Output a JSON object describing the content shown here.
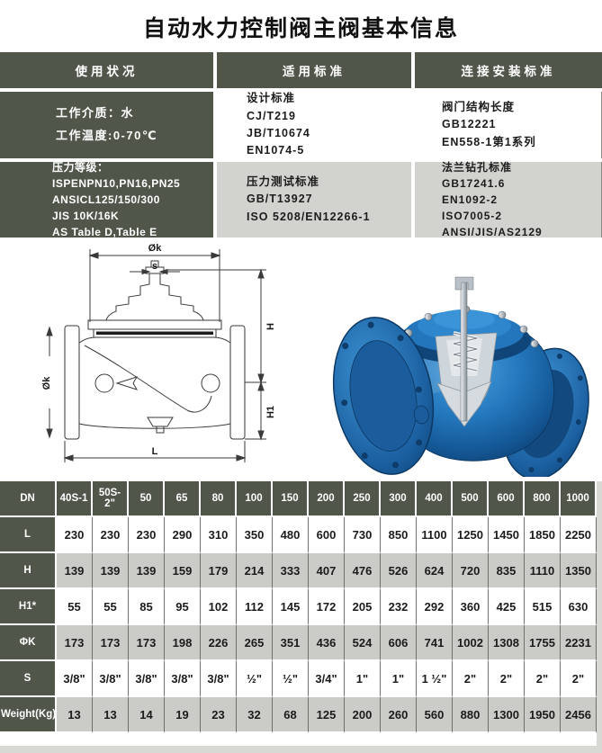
{
  "title": "自动水力控制阀主阀基本信息",
  "info_table": {
    "headers": [
      "使用状况",
      "适用标准",
      "连接安装标准"
    ],
    "working_conditions": [
      "工作介质：水",
      "工作温度:0-70℃"
    ],
    "design_standards": [
      "设计标准",
      "CJ/T219",
      "JB/T10674",
      "EN1074-5"
    ],
    "structure_length": [
      "阀门结构长度",
      "GB12221",
      "EN558-1第1系列"
    ],
    "pressure_ratings": [
      "压力等级：",
      "ISPENPN10,PN16,PN25",
      "ANSICL125/150/300",
      "JIS 10K/16K",
      "AS Table D,Table E"
    ],
    "pressure_test": [
      "压力测试标准",
      "GB/T13927",
      "ISO 5208/EN12266-1"
    ],
    "flange_drilling": [
      "法兰钻孔标准",
      "GB17241.6",
      "EN1092-2",
      "ISO7005-2",
      "ANSI/JIS/AS2129"
    ]
  },
  "drawing": {
    "dim_ok_top": "Øk",
    "dim_s": "s",
    "dim_h": "H",
    "dim_h1": "H1",
    "dim_ok_left": "Øk",
    "dim_l": "L"
  },
  "spec_table": {
    "corner_label": "DN",
    "columns": [
      "40S-1",
      "50S-2\"",
      "50",
      "65",
      "80",
      "100",
      "150",
      "200",
      "250",
      "300",
      "400",
      "500",
      "600",
      "800",
      "1000"
    ],
    "rows": [
      {
        "label": "L",
        "values": [
          "230",
          "230",
          "230",
          "290",
          "310",
          "350",
          "480",
          "600",
          "730",
          "850",
          "1100",
          "1250",
          "1450",
          "1850",
          "2250"
        ]
      },
      {
        "label": "H",
        "values": [
          "139",
          "139",
          "139",
          "159",
          "179",
          "214",
          "333",
          "407",
          "476",
          "526",
          "624",
          "720",
          "835",
          "1110",
          "1350"
        ]
      },
      {
        "label": "H1*",
        "values": [
          "55",
          "55",
          "85",
          "95",
          "102",
          "112",
          "145",
          "172",
          "205",
          "232",
          "292",
          "360",
          "425",
          "515",
          "630"
        ]
      },
      {
        "label": "ΦK",
        "values": [
          "173",
          "173",
          "173",
          "198",
          "226",
          "265",
          "351",
          "436",
          "524",
          "606",
          "741",
          "1002",
          "1308",
          "1755",
          "2231"
        ]
      },
      {
        "label": "S",
        "values": [
          "3/8\"",
          "3/8\"",
          "3/8\"",
          "3/8\"",
          "3/8\"",
          "½\"",
          "½\"",
          "3/4\"",
          "1\"",
          "1\"",
          "1 ½\"",
          "2\"",
          "2\"",
          "2\"",
          "2\""
        ]
      },
      {
        "label": "Weight(Kg)",
        "values": [
          "13",
          "13",
          "14",
          "19",
          "23",
          "32",
          "68",
          "125",
          "200",
          "260",
          "560",
          "880",
          "1300",
          "1950",
          "2456"
        ]
      }
    ]
  },
  "colors": {
    "header_bg": "#51564b",
    "row_gray": "#cbcbc7",
    "cell_gray": "#d2d2cf",
    "valve_blue": "#2277be",
    "edge_strip": "#d8d8d4"
  }
}
